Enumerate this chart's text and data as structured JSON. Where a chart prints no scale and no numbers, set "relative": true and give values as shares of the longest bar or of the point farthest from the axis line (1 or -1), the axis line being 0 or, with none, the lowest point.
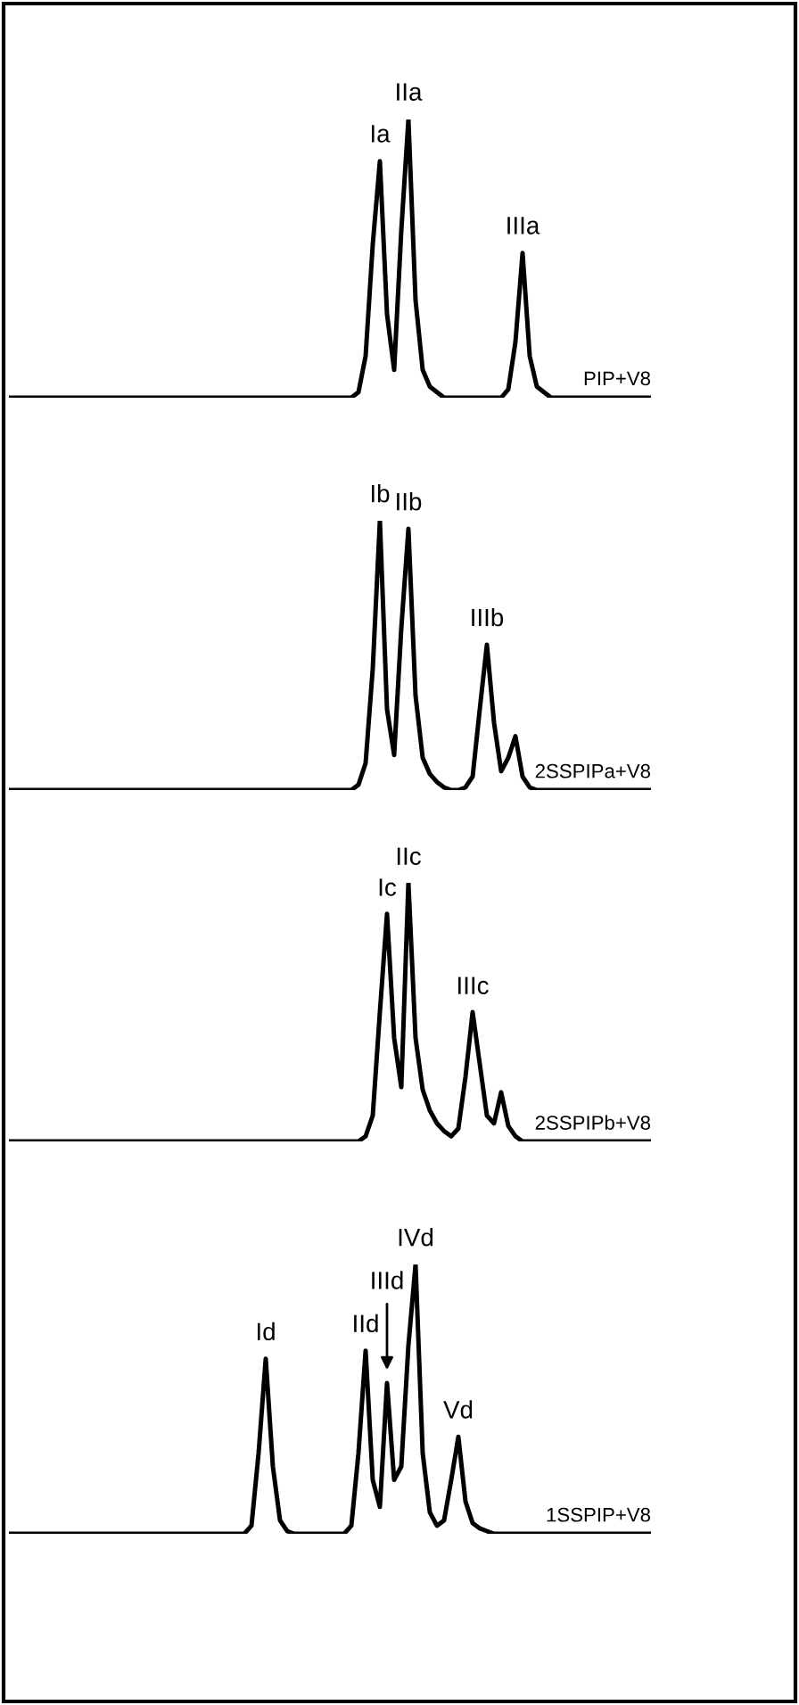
{
  "chart_data": [
    {
      "type": "line",
      "relative": true,
      "categories": [
        null,
        null,
        null,
        null,
        null,
        null,
        null,
        null,
        null,
        null,
        null,
        null,
        null,
        null,
        null,
        null,
        null,
        null,
        null,
        null,
        null,
        null,
        null,
        null,
        null,
        null,
        null,
        null,
        null,
        null,
        null,
        null,
        null,
        null,
        null,
        null,
        null,
        null,
        null,
        null,
        null,
        null,
        null,
        null,
        null,
        null,
        null,
        null,
        null,
        null,
        null,
        null,
        null,
        null,
        null,
        null,
        null,
        null,
        null,
        null,
        null,
        null,
        null,
        null,
        null,
        null,
        null,
        null,
        null,
        null,
        null,
        null,
        null,
        null,
        null,
        null,
        null,
        null,
        null,
        null,
        null,
        null,
        null,
        null,
        null,
        null,
        null,
        null,
        null,
        null,
        null
      ],
      "series": [
        {
          "name": "PIP+V8",
          "color": "#000000",
          "values": [
            0,
            0,
            0,
            0,
            0,
            0,
            0,
            0,
            0,
            0,
            0,
            0,
            0,
            0,
            0,
            0,
            0,
            0,
            0,
            0,
            0,
            0,
            0,
            0,
            0,
            0,
            0,
            0,
            0,
            0,
            0,
            0,
            0,
            0,
            0,
            0,
            0,
            0,
            0,
            0,
            0,
            0,
            0,
            0,
            0,
            0,
            0,
            0,
            0,
            0.02,
            0.15,
            0.55,
            0.85,
            0.3,
            0.1,
            0.6,
            1,
            0.35,
            0.1,
            0.04,
            0.02,
            0,
            0,
            0,
            0,
            0,
            0,
            0,
            0,
            0,
            0.03,
            0.2,
            0.52,
            0.15,
            0.04,
            0.02,
            0,
            0,
            0,
            0,
            0,
            0,
            0,
            0,
            0,
            0,
            0,
            0,
            0,
            0,
            0
          ]
        }
      ],
      "annotations": [
        {
          "text": "Ia",
          "y": 0.85
        },
        {
          "text": "IIa",
          "y": 1
        },
        {
          "text": "IIIa",
          "y": 0.52
        }
      ]
    },
    {
      "type": "line",
      "relative": true,
      "categories": [
        null,
        null,
        null,
        null,
        null,
        null,
        null,
        null,
        null,
        null,
        null,
        null,
        null,
        null,
        null,
        null,
        null,
        null,
        null,
        null,
        null,
        null,
        null,
        null,
        null,
        null,
        null,
        null,
        null,
        null,
        null,
        null,
        null,
        null,
        null,
        null,
        null,
        null,
        null,
        null,
        null,
        null,
        null,
        null,
        null,
        null,
        null,
        null,
        null,
        null,
        null,
        null,
        null,
        null,
        null,
        null,
        null,
        null,
        null,
        null,
        null,
        null,
        null,
        null,
        null,
        null,
        null,
        null,
        null,
        null,
        null,
        null,
        null,
        null,
        null,
        null,
        null,
        null,
        null,
        null,
        null,
        null,
        null,
        null,
        null,
        null,
        null,
        null,
        null,
        null,
        null
      ],
      "series": [
        {
          "name": "2SSPIPa+V8",
          "color": "#000000",
          "values": [
            0,
            0,
            0,
            0,
            0,
            0,
            0,
            0,
            0,
            0,
            0,
            0,
            0,
            0,
            0,
            0,
            0,
            0,
            0,
            0,
            0,
            0,
            0,
            0,
            0,
            0,
            0,
            0,
            0,
            0,
            0,
            0,
            0,
            0,
            0,
            0,
            0,
            0,
            0,
            0,
            0,
            0,
            0,
            0,
            0,
            0,
            0,
            0,
            0,
            0.02,
            0.1,
            0.45,
            1,
            0.3,
            0.13,
            0.6,
            0.97,
            0.35,
            0.12,
            0.06,
            0.03,
            0.01,
            0,
            0,
            0.01,
            0.05,
            0.3,
            0.54,
            0.25,
            0.07,
            0.12,
            0.2,
            0.05,
            0.01,
            0,
            0,
            0,
            0,
            0,
            0,
            0,
            0,
            0,
            0,
            0,
            0,
            0,
            0,
            0,
            0,
            0
          ]
        }
      ],
      "annotations": [
        {
          "text": "Ib",
          "y": 1
        },
        {
          "text": "IIb",
          "y": 0.97
        },
        {
          "text": "IIIb",
          "y": 0.54
        }
      ]
    },
    {
      "type": "line",
      "relative": true,
      "categories": [
        null,
        null,
        null,
        null,
        null,
        null,
        null,
        null,
        null,
        null,
        null,
        null,
        null,
        null,
        null,
        null,
        null,
        null,
        null,
        null,
        null,
        null,
        null,
        null,
        null,
        null,
        null,
        null,
        null,
        null,
        null,
        null,
        null,
        null,
        null,
        null,
        null,
        null,
        null,
        null,
        null,
        null,
        null,
        null,
        null,
        null,
        null,
        null,
        null,
        null,
        null,
        null,
        null,
        null,
        null,
        null,
        null,
        null,
        null,
        null,
        null,
        null,
        null,
        null,
        null,
        null,
        null,
        null,
        null,
        null,
        null,
        null,
        null,
        null,
        null,
        null,
        null,
        null,
        null,
        null,
        null,
        null,
        null,
        null,
        null,
        null,
        null,
        null,
        null,
        null,
        null
      ],
      "series": [
        {
          "name": "2SSPIPb+V8",
          "color": "#000000",
          "values": [
            0,
            0,
            0,
            0,
            0,
            0,
            0,
            0,
            0,
            0,
            0,
            0,
            0,
            0,
            0,
            0,
            0,
            0,
            0,
            0,
            0,
            0,
            0,
            0,
            0,
            0,
            0,
            0,
            0,
            0,
            0,
            0,
            0,
            0,
            0,
            0,
            0,
            0,
            0,
            0,
            0,
            0,
            0,
            0,
            0,
            0,
            0,
            0,
            0,
            0,
            0.02,
            0.1,
            0.5,
            0.88,
            0.4,
            0.21,
            1,
            0.4,
            0.2,
            0.12,
            0.07,
            0.04,
            0.02,
            0.05,
            0.25,
            0.5,
            0.3,
            0.1,
            0.07,
            0.19,
            0.06,
            0.02,
            0,
            0,
            0,
            0,
            0,
            0,
            0,
            0,
            0,
            0,
            0,
            0,
            0,
            0,
            0,
            0,
            0,
            0,
            0
          ]
        }
      ],
      "annotations": [
        {
          "text": "Ic",
          "y": 0.88
        },
        {
          "text": "IIc",
          "y": 1
        },
        {
          "text": "IIIc",
          "y": 0.5
        }
      ]
    },
    {
      "type": "line",
      "relative": true,
      "categories": [
        null,
        null,
        null,
        null,
        null,
        null,
        null,
        null,
        null,
        null,
        null,
        null,
        null,
        null,
        null,
        null,
        null,
        null,
        null,
        null,
        null,
        null,
        null,
        null,
        null,
        null,
        null,
        null,
        null,
        null,
        null,
        null,
        null,
        null,
        null,
        null,
        null,
        null,
        null,
        null,
        null,
        null,
        null,
        null,
        null,
        null,
        null,
        null,
        null,
        null,
        null,
        null,
        null,
        null,
        null,
        null,
        null,
        null,
        null,
        null,
        null,
        null,
        null,
        null,
        null,
        null,
        null,
        null,
        null,
        null,
        null,
        null,
        null,
        null,
        null,
        null,
        null,
        null,
        null,
        null,
        null,
        null,
        null,
        null,
        null,
        null,
        null,
        null,
        null,
        null,
        null
      ],
      "series": [
        {
          "name": "1SSPIP+V8",
          "color": "#000000",
          "values": [
            0,
            0,
            0,
            0,
            0,
            0,
            0,
            0,
            0,
            0,
            0,
            0,
            0,
            0,
            0,
            0,
            0,
            0,
            0,
            0,
            0,
            0,
            0,
            0,
            0,
            0,
            0,
            0,
            0,
            0,
            0,
            0,
            0,
            0,
            0.03,
            0.3,
            0.65,
            0.25,
            0.05,
            0.01,
            0,
            0,
            0,
            0,
            0,
            0,
            0,
            0,
            0.03,
            0.3,
            0.68,
            0.2,
            0.1,
            0.56,
            0.2,
            0.25,
            0.7,
            1,
            0.3,
            0.08,
            0.03,
            0.05,
            0.2,
            0.36,
            0.12,
            0.04,
            0.02,
            0.01,
            0,
            0,
            0,
            0,
            0,
            0,
            0,
            0,
            0,
            0,
            0,
            0,
            0,
            0,
            0,
            0,
            0,
            0,
            0,
            0,
            0,
            0,
            0
          ]
        }
      ],
      "annotations": [
        {
          "text": "Id",
          "y": 0.65
        },
        {
          "text": "IId",
          "y": 0.68
        },
        {
          "text": "IIId",
          "y": 0.56
        },
        {
          "text": "IVd",
          "y": 1
        },
        {
          "text": "Vd",
          "y": 0.36
        }
      ]
    }
  ]
}
